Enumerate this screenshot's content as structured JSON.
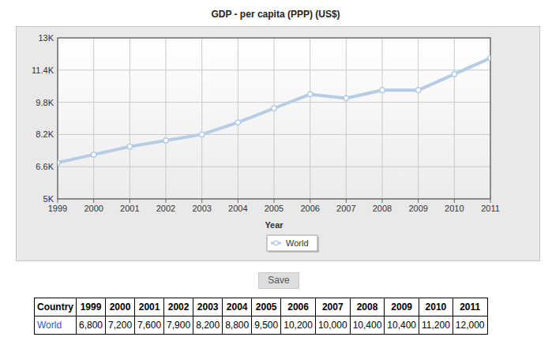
{
  "chart_data": {
    "type": "line",
    "title": "GDP - per capita (PPP) (US$)",
    "xlabel": "Year",
    "x": [
      1999,
      2000,
      2001,
      2002,
      2003,
      2004,
      2005,
      2006,
      2007,
      2008,
      2009,
      2010,
      2011
    ],
    "series": [
      {
        "name": "World",
        "color": "#b5cde6",
        "marker": "circle",
        "values": [
          6800,
          7200,
          7600,
          7900,
          8200,
          8800,
          9500,
          10200,
          10000,
          10400,
          10400,
          11200,
          12000
        ]
      }
    ],
    "xlim": [
      1999,
      2011
    ],
    "xticks": [
      1999,
      2000,
      2001,
      2002,
      2003,
      2004,
      2005,
      2006,
      2007,
      2008,
      2009,
      2010,
      2011
    ],
    "ylim": [
      5000,
      13000
    ],
    "yticks": [
      {
        "value": 5000,
        "label": "5K"
      },
      {
        "value": 6600,
        "label": "6.6K"
      },
      {
        "value": 8200,
        "label": "8.2K"
      },
      {
        "value": 9800,
        "label": "9.8K"
      },
      {
        "value": 11400,
        "label": "11.4K"
      },
      {
        "value": 13000,
        "label": "13K"
      }
    ],
    "grid": true,
    "legend": "bottom"
  },
  "save_button": {
    "label": "Save"
  },
  "table": {
    "header": [
      "Country",
      "1999",
      "2000",
      "2001",
      "2002",
      "2003",
      "2004",
      "2005",
      "2006",
      "2007",
      "2008",
      "2009",
      "2010",
      "2011"
    ],
    "rows": [
      [
        "World",
        "6,800",
        "7,200",
        "7,600",
        "7,900",
        "8,200",
        "8,800",
        "9,500",
        "10,200",
        "10,000",
        "10,400",
        "10,400",
        "11,200",
        "12,000"
      ]
    ]
  }
}
